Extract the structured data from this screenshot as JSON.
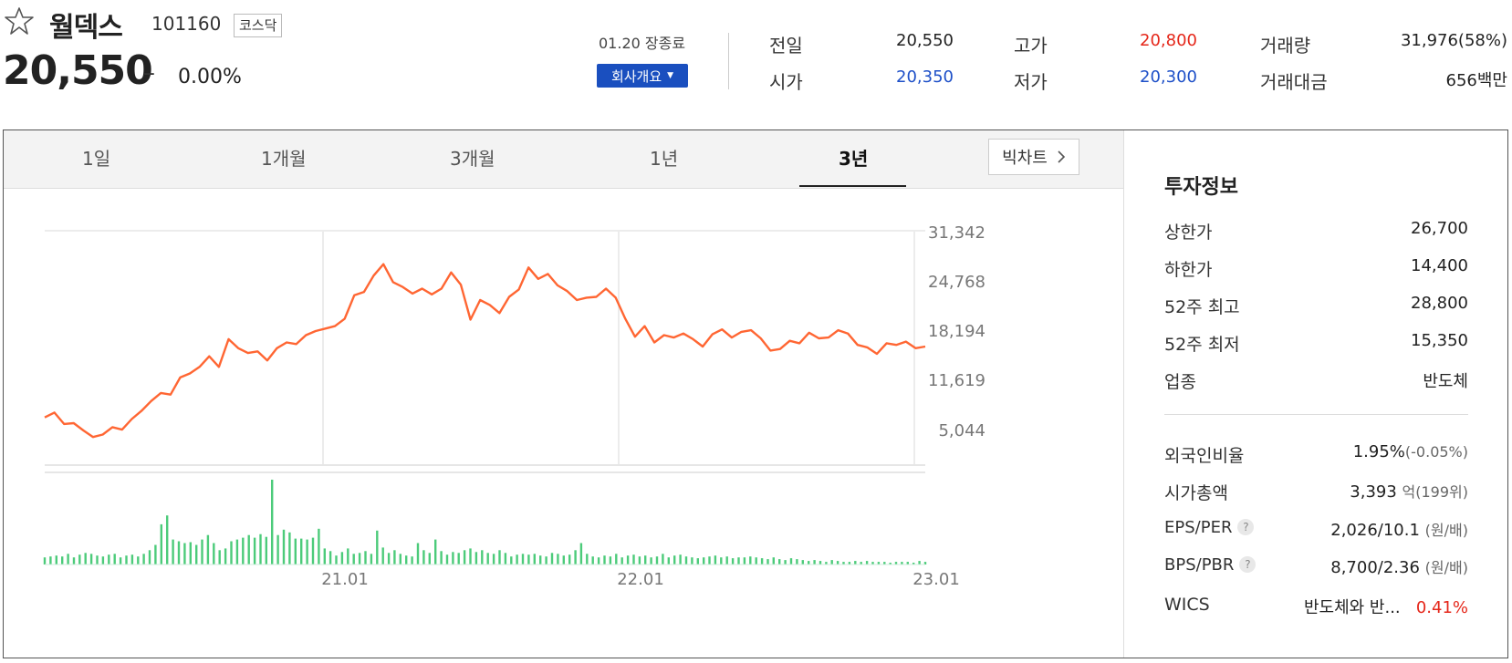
{
  "stock": {
    "name": "월덱스",
    "code": "101160",
    "market": "코스닥",
    "price": "20,550",
    "change_symbol": "–",
    "change_pct": "0.00%",
    "status": "01.20 장종료",
    "company_button": "회사개요"
  },
  "quote": {
    "prev_label": "전일",
    "prev": "20,550",
    "high_label": "고가",
    "high": "20,800",
    "volume_label": "거래량",
    "volume": "31,976(58%)",
    "open_label": "시가",
    "open": "20,350",
    "low_label": "저가",
    "low": "20,300",
    "value_label": "거래대금",
    "value": "656백만"
  },
  "tabs": [
    {
      "label": "1일"
    },
    {
      "label": "1개월"
    },
    {
      "label": "3개월"
    },
    {
      "label": "1년"
    },
    {
      "label": "3년",
      "active": true
    }
  ],
  "bigchart_label": "빅차트",
  "icons": {
    "favorite": "star-outline-icon",
    "caret": "caret-down-icon",
    "bigchart": "chevron-right-icon",
    "help": "help-icon"
  },
  "colors": {
    "up": "#e5271a",
    "down": "#1e50c8",
    "line": "#ff6633",
    "volume": "#4ccb7a",
    "button": "#1a4fbf"
  },
  "chart_data": {
    "type": "line",
    "y_ticks": [
      "31,342",
      "24,768",
      "18,194",
      "11,619",
      "5,044"
    ],
    "x_ticks": [
      "21.01",
      "22.01",
      "23.01"
    ],
    "ylim": [
      5044,
      31342
    ],
    "price_series": [
      10000,
      10600,
      9200,
      9300,
      8400,
      7600,
      7900,
      8800,
      8500,
      9800,
      10800,
      12000,
      13000,
      12800,
      14900,
      15400,
      16200,
      17500,
      16200,
      19600,
      18500,
      17900,
      18100,
      17000,
      18500,
      19200,
      19000,
      20100,
      20600,
      20900,
      21200,
      22100,
      25000,
      25400,
      27400,
      28800,
      26600,
      26000,
      25200,
      25800,
      25100,
      25800,
      27800,
      26300,
      22000,
      24400,
      23800,
      22800,
      24800,
      25700,
      28400,
      27000,
      27600,
      26200,
      25500,
      24400,
      24700,
      24800,
      25800,
      24700,
      22100,
      19900,
      21200,
      19200,
      20100,
      19800,
      20300,
      19600,
      18700,
      20200,
      20800,
      19800,
      20500,
      20700,
      19700,
      18200,
      18400,
      19400,
      19100,
      20400,
      19700,
      19800,
      20700,
      20300,
      18900,
      18600,
      17800,
      19100,
      18900,
      19300,
      18500,
      18700
    ],
    "volume_series": [
      8,
      9,
      10,
      9,
      12,
      8,
      11,
      13,
      12,
      10,
      9,
      11,
      12,
      8,
      10,
      11,
      9,
      12,
      16,
      22,
      45,
      55,
      28,
      26,
      24,
      25,
      22,
      28,
      33,
      24,
      16,
      18,
      26,
      28,
      30,
      33,
      30,
      34,
      31,
      95,
      33,
      39,
      36,
      29,
      29,
      28,
      30,
      40,
      18,
      15,
      10,
      14,
      18,
      12,
      13,
      15,
      12,
      38,
      19,
      13,
      16,
      12,
      10,
      9,
      24,
      16,
      13,
      28,
      15,
      11,
      14,
      13,
      16,
      18,
      14,
      16,
      13,
      12,
      16,
      13,
      9,
      11,
      12,
      11,
      12,
      10,
      9,
      13,
      12,
      10,
      11,
      16,
      24,
      12,
      9,
      8,
      10,
      9,
      12,
      8,
      10,
      11,
      9,
      10,
      8,
      9,
      12,
      8,
      10,
      11,
      9,
      8,
      7,
      8,
      9,
      10,
      8,
      9,
      7,
      8,
      8,
      9,
      8,
      7,
      6,
      8,
      6,
      5,
      7,
      6,
      5,
      4,
      5,
      4,
      3,
      5,
      4,
      3,
      3,
      4,
      3,
      4,
      3,
      3,
      3,
      2,
      3,
      3,
      3,
      2,
      4,
      3
    ],
    "xlabel": "",
    "ylabel": "",
    "grid": true
  },
  "invest": {
    "title": "투자정보",
    "upper_label": "상한가",
    "upper": "26,700",
    "lower_label": "하한가",
    "lower": "14,400",
    "high52_label": "52주 최고",
    "high52": "28,800",
    "low52_label": "52주 최저",
    "low52": "15,350",
    "industry_label": "업종",
    "industry": "반도체",
    "foreign_label": "외국인비율",
    "foreign": "1.95%",
    "foreign_change": "(-0.05%)",
    "mcap_label": "시가총액",
    "mcap": "3,393",
    "mcap_unit": "억(199위)",
    "eps_label": "EPS/PER",
    "eps": "2,026/10.1",
    "eps_unit": "(원/배)",
    "bps_label": "BPS/PBR",
    "bps": "8,700/2.36",
    "bps_unit": "(원/배)",
    "wics_label": "WICS",
    "wics": "반도체와 반...",
    "wics_change": "0.41%"
  }
}
